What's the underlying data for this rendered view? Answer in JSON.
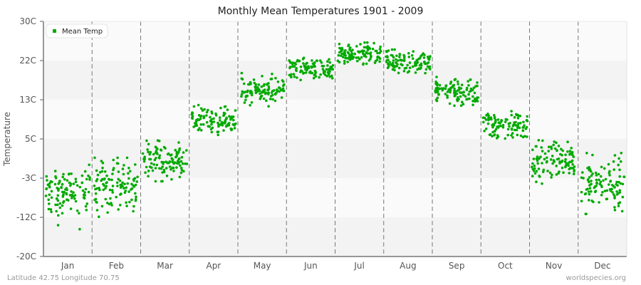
{
  "chart_data": {
    "type": "scatter",
    "title": "Monthly Mean Temperatures 1901 - 2009",
    "xlabel": "",
    "ylabel": "Temperature",
    "y_ticks": [
      "30C",
      "22C",
      "13C",
      "5C",
      "-3C",
      "-12C",
      "-20C"
    ],
    "y_tick_values": [
      30,
      22,
      13,
      5,
      -3,
      -12,
      -20
    ],
    "ylim": [
      -20,
      30
    ],
    "categories": [
      "Jan",
      "Feb",
      "Mar",
      "Apr",
      "May",
      "Jun",
      "Jul",
      "Aug",
      "Sep",
      "Oct",
      "Nov",
      "Dec"
    ],
    "series": [
      {
        "name": "Mean Temp",
        "color": "#00aa00",
        "points_per_month": 109,
        "monthly_mean": [
          -6.5,
          -5.0,
          0.5,
          9.0,
          15.0,
          20.0,
          23.0,
          21.5,
          15.0,
          8.0,
          0.5,
          -4.5
        ],
        "monthly_min": [
          -16.5,
          -15.0,
          -4.0,
          5.5,
          10.5,
          17.0,
          19.5,
          18.5,
          10.5,
          3.5,
          -4.5,
          -14.0
        ],
        "monthly_max": [
          -0.5,
          1.0,
          7.0,
          13.0,
          19.0,
          23.5,
          25.5,
          24.0,
          18.5,
          12.0,
          6.0,
          2.0
        ]
      }
    ],
    "grid": true,
    "legend_position": "top-left"
  },
  "title": "Monthly Mean Temperatures 1901 - 2009",
  "legend": {
    "label": "Mean Temp"
  },
  "axis": {
    "ylabel": "Temperature"
  },
  "footer": {
    "location": "Latitude 42.75 Longitude 70.75",
    "source": "worldspecies.org"
  }
}
